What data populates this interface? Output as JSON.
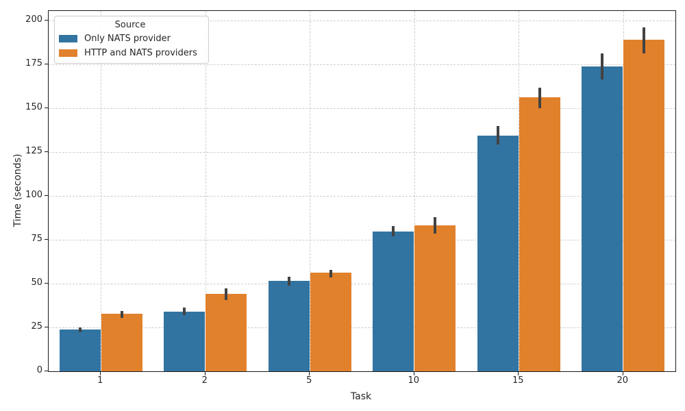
{
  "chart_data": {
    "type": "bar",
    "title": "",
    "xlabel": "Task",
    "ylabel": "Time (seconds)",
    "categories": [
      "1",
      "2",
      "5",
      "10",
      "15",
      "20"
    ],
    "series": [
      {
        "name": "Only NATS provider",
        "color": "#3274a1",
        "values": [
          23.7,
          34.0,
          51.7,
          79.9,
          134.5,
          174.0
        ],
        "error_low": [
          22.1,
          32.0,
          48.8,
          76.9,
          129.4,
          166.5
        ],
        "error_high": [
          25.0,
          36.3,
          54.0,
          82.8,
          139.8,
          181.5
        ]
      },
      {
        "name": "HTTP and NATS providers",
        "color": "#e1812c",
        "values": [
          32.8,
          44.3,
          56.1,
          83.3,
          156.5,
          189.2
        ],
        "error_low": [
          30.5,
          40.5,
          53.6,
          78.6,
          150.1,
          181.2
        ],
        "error_high": [
          34.5,
          47.3,
          57.9,
          88.1,
          161.8,
          196.2
        ]
      }
    ],
    "yticks": [
      0,
      25,
      50,
      75,
      100,
      125,
      150,
      175,
      200
    ],
    "ylim": [
      0,
      205.6
    ],
    "legend_title": "Source",
    "legend_position": "upper left",
    "grid": "dashed both axes",
    "error_bar_color": "#424242",
    "grid_color": "#cccccc",
    "background_color": "#ffffff"
  }
}
